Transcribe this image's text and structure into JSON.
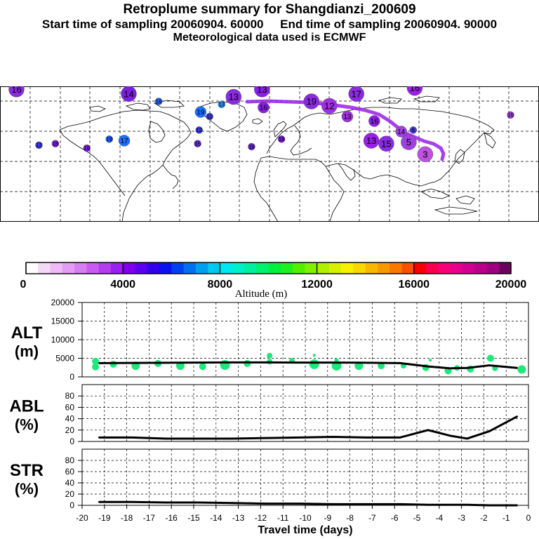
{
  "header": {
    "title": "Retroplume summary for Shangdianzi_200609",
    "sampling_line": "Start time of sampling 20060904. 60000     End time of sampling 20060904. 90000",
    "met_line": "Meteorological data used is ECMWF"
  },
  "colorbar": {
    "label": "Altitude (m)",
    "ticks": [
      "0",
      "4000",
      "8000",
      "12000",
      "16000",
      "20000"
    ],
    "colors": [
      "#ffffff",
      "#f4d8f8",
      "#eebbf6",
      "#e39ef3",
      "#d67ff1",
      "#c95cf0",
      "#b43df0",
      "#9a1ff0",
      "#8000ee",
      "#5a00ee",
      "#3300ee",
      "#0a10ee",
      "#0040ee",
      "#0070ee",
      "#00a0ee",
      "#00c8f0",
      "#00e8f0",
      "#00f0c8",
      "#00f0a0",
      "#00f070",
      "#00f040",
      "#20f020",
      "#50f000",
      "#80f000",
      "#b0f000",
      "#d8f000",
      "#f8f000",
      "#f8d800",
      "#f8b800",
      "#f89800",
      "#f87800",
      "#f85000",
      "#f80000",
      "#f8004c",
      "#f80078",
      "#e8008c",
      "#d00090",
      "#b80088",
      "#a00080",
      "#700060"
    ]
  },
  "map_labels": [
    {
      "lon": -169,
      "lat": 88,
      "t": "16",
      "d": "lg",
      "c": "#8a2be2"
    },
    {
      "lon": -94,
      "lat": 85,
      "t": "14",
      "d": "lg",
      "c": "#7b1fe0"
    },
    {
      "lon": -24,
      "lat": 83,
      "t": "13",
      "d": "lg",
      "c": "#8a2be2"
    },
    {
      "lon": -5,
      "lat": 88,
      "t": "13",
      "d": "lg",
      "c": "#8b1ee8"
    },
    {
      "lon": -46,
      "lat": 73,
      "t": "19",
      "d": "md",
      "c": "#1e6eff"
    },
    {
      "lon": -74,
      "lat": 80,
      "t": "16",
      "d": "sm",
      "c": "#2060ff"
    },
    {
      "lon": -32,
      "lat": 78,
      "t": "13",
      "d": "sm",
      "c": "#1e90ff"
    },
    {
      "lon": -40,
      "lat": 70,
      "t": "12",
      "d": "sm",
      "c": "#3a3ae0"
    },
    {
      "lon": -4,
      "lat": 76,
      "t": "16",
      "d": "md",
      "c": "#8b1ee8"
    },
    {
      "lon": 28,
      "lat": 80,
      "t": "19",
      "d": "lg",
      "c": "#8a2be2"
    },
    {
      "lon": 58,
      "lat": 85,
      "t": "17",
      "d": "lg",
      "c": "#8a2be2"
    },
    {
      "lon": 97,
      "lat": 89,
      "t": "16",
      "d": "lg",
      "c": "#9a20e8"
    },
    {
      "lon": 40,
      "lat": 77,
      "t": "12",
      "d": "lg",
      "c": "#a030e0"
    },
    {
      "lon": 52,
      "lat": 70,
      "t": "13",
      "d": "md",
      "c": "#a030e0"
    },
    {
      "lon": 70,
      "lat": 67,
      "t": "16",
      "d": "md",
      "c": "#8b1ee8"
    },
    {
      "lon": 88,
      "lat": 60,
      "t": "14",
      "d": "md",
      "c": "#a040e0"
    },
    {
      "lon": 68,
      "lat": 54,
      "t": "13",
      "d": "lg",
      "c": "#9a20e8"
    },
    {
      "lon": 78,
      "lat": 52,
      "t": "15",
      "d": "lg",
      "c": "#8a2be2"
    },
    {
      "lon": 93,
      "lat": 53,
      "t": "5",
      "d": "lg",
      "c": "#a040e0"
    },
    {
      "lon": 104,
      "lat": 45,
      "t": "3",
      "d": "lg",
      "c": "#c050e0"
    },
    {
      "lon": 96,
      "lat": 61,
      "t": "6",
      "d": "sm",
      "c": "#4a3ae0"
    },
    {
      "lon": -154,
      "lat": 51,
      "t": "12",
      "d": "sm",
      "c": "#3a3ae0"
    },
    {
      "lon": -143,
      "lat": 52,
      "t": "18",
      "d": "sm",
      "c": "#7b1fe0"
    },
    {
      "lon": -122,
      "lat": 49,
      "t": "19",
      "d": "sm",
      "c": "#7b1fe0"
    },
    {
      "lon": -107,
      "lat": 55,
      "t": "19",
      "d": "sm",
      "c": "#2060ff"
    },
    {
      "lon": -97,
      "lat": 54,
      "t": "17",
      "d": "md",
      "c": "#1e6eff"
    },
    {
      "lon": -47,
      "lat": 61,
      "t": "12",
      "d": "sm",
      "c": "#3a3ae0"
    },
    {
      "lon": -48,
      "lat": 52,
      "t": "15",
      "d": "sm",
      "c": "#6a2ae0"
    },
    {
      "lon": -12,
      "lat": 50,
      "t": "19",
      "d": "sm",
      "c": "#6a2ae0"
    },
    {
      "lon": 8,
      "lat": 55,
      "t": "19",
      "d": "sm",
      "c": "#7b1fe0"
    },
    {
      "lon": 161,
      "lat": 71,
      "t": "19",
      "d": "sm",
      "c": "#a040e0"
    }
  ],
  "chart_data": [
    {
      "type": "line",
      "name": "ALT",
      "ylabel": "ALT (m)",
      "ylim": [
        0,
        20000
      ],
      "yticks": [
        "20000",
        "15000",
        "10000",
        "5000",
        "0"
      ],
      "x": [
        -19.25,
        -17.75,
        -16.25,
        -14.75,
        -13.25,
        -11.75,
        -10.25,
        -8.75,
        -7.25,
        -5.75,
        -4.5,
        -3.5,
        -2.75,
        -1.75,
        -0.5
      ],
      "values": [
        3700,
        3750,
        3800,
        3850,
        3900,
        3900,
        3850,
        3850,
        3800,
        3700,
        2800,
        2300,
        2400,
        3100,
        2400
      ],
      "scatter": [
        {
          "x": -19.4,
          "y": 2700,
          "s": 5
        },
        {
          "x": -19.4,
          "y": 4200,
          "s": 5
        },
        {
          "x": -18.6,
          "y": 3400,
          "s": 5
        },
        {
          "x": -17.6,
          "y": 3000,
          "s": 6
        },
        {
          "x": -16.6,
          "y": 3600,
          "s": 5
        },
        {
          "x": -15.6,
          "y": 3000,
          "s": 6
        },
        {
          "x": -14.6,
          "y": 2800,
          "s": 5
        },
        {
          "x": -13.6,
          "y": 3200,
          "s": 7
        },
        {
          "x": -12.6,
          "y": 3600,
          "s": 5
        },
        {
          "x": -11.6,
          "y": 4100,
          "s": 4
        },
        {
          "x": -11.6,
          "y": 5700,
          "s": 4
        },
        {
          "x": -10.6,
          "y": 4300,
          "s": 4
        },
        {
          "x": -9.6,
          "y": 3400,
          "s": 7
        },
        {
          "x": -9.6,
          "y": 5800,
          "s": 2
        },
        {
          "x": -8.6,
          "y": 3000,
          "s": 7
        },
        {
          "x": -8.6,
          "y": 4400,
          "s": 3
        },
        {
          "x": -7.6,
          "y": 3000,
          "s": 6
        },
        {
          "x": -6.6,
          "y": 3000,
          "s": 5
        },
        {
          "x": -5.6,
          "y": 3000,
          "s": 4
        },
        {
          "x": -4.6,
          "y": 2500,
          "s": 5
        },
        {
          "x": -4.4,
          "y": 4500,
          "s": 2
        },
        {
          "x": -3.6,
          "y": 1600,
          "s": 5
        },
        {
          "x": -3.2,
          "y": 2400,
          "s": 4
        },
        {
          "x": -2.6,
          "y": 2100,
          "s": 5
        },
        {
          "x": -1.7,
          "y": 5000,
          "s": 5
        },
        {
          "x": -1.5,
          "y": 2300,
          "s": 4
        },
        {
          "x": -0.3,
          "y": 2000,
          "s": 6
        }
      ]
    },
    {
      "type": "line",
      "name": "ABL",
      "ylabel": "ABL (%)",
      "ylim": [
        0,
        100
      ],
      "yticks": [
        "80",
        "60",
        "40",
        "20",
        "0"
      ],
      "x": [
        -19.25,
        -17.75,
        -16.25,
        -14.75,
        -13.25,
        -11.75,
        -10.25,
        -8.75,
        -7.25,
        -5.75,
        -4.5,
        -3.5,
        -2.75,
        -1.75,
        -0.5
      ],
      "values": [
        7,
        7,
        5,
        5,
        5,
        6,
        7,
        8,
        7,
        7,
        20,
        10,
        5,
        18,
        44
      ]
    },
    {
      "type": "line",
      "name": "STR",
      "ylabel": "STR (%)",
      "ylim": [
        0,
        100
      ],
      "yticks": [
        "80",
        "60",
        "40",
        "20",
        "0"
      ],
      "x": [
        -19.25,
        -17.75,
        -16.25,
        -14.75,
        -13.25,
        -11.75,
        -10.25,
        -8.75,
        -7.25,
        -5.75,
        -4.5,
        -3.5,
        -2.75,
        -1.75,
        -0.5
      ],
      "values": [
        6,
        6,
        5,
        5,
        4,
        3,
        3,
        2,
        2,
        2,
        1,
        1,
        1,
        0,
        0
      ],
      "xlabel": "Travel time (days)",
      "xticks": [
        "-20",
        "-19",
        "-18",
        "-17",
        "-16",
        "-15",
        "-14",
        "-13",
        "-12",
        "-11",
        "-10",
        "-9",
        "-8",
        "-7",
        "-6",
        "-5",
        "-4",
        "-3",
        "-2",
        "-1",
        "0"
      ]
    }
  ]
}
